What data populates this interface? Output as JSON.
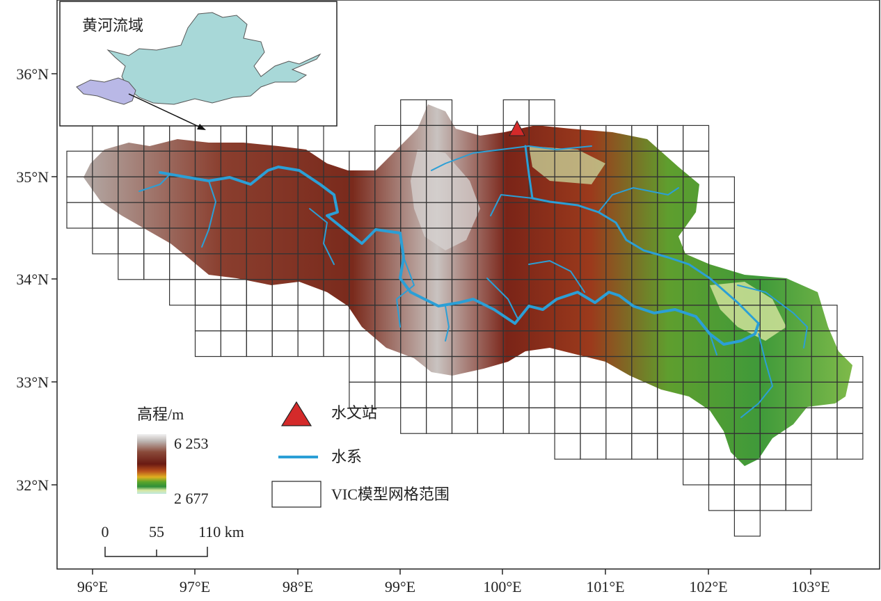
{
  "map": {
    "x_ticks": [
      "96°E",
      "97°E",
      "98°E",
      "99°E",
      "100°E",
      "101°E",
      "102°E",
      "103°E"
    ],
    "y_ticks": [
      "36°N",
      "35°N",
      "34°N",
      "33°N",
      "32°N"
    ]
  },
  "inset": {
    "title": "黄河流域"
  },
  "legend": {
    "elevation_title": "高程/m",
    "elevation_max": "6 253",
    "elevation_min": "2 677",
    "station_label": "水文站",
    "river_label": "水系",
    "grid_label": "VIC模型网格范围"
  },
  "scale_bar": {
    "labels": [
      "0",
      "55",
      "110 km"
    ]
  },
  "colors": {
    "river": "#2b9fd6",
    "station": "#d42a2a",
    "basin_inset": "#a8d8d8",
    "highlight_inset": "#b9b8e6"
  }
}
